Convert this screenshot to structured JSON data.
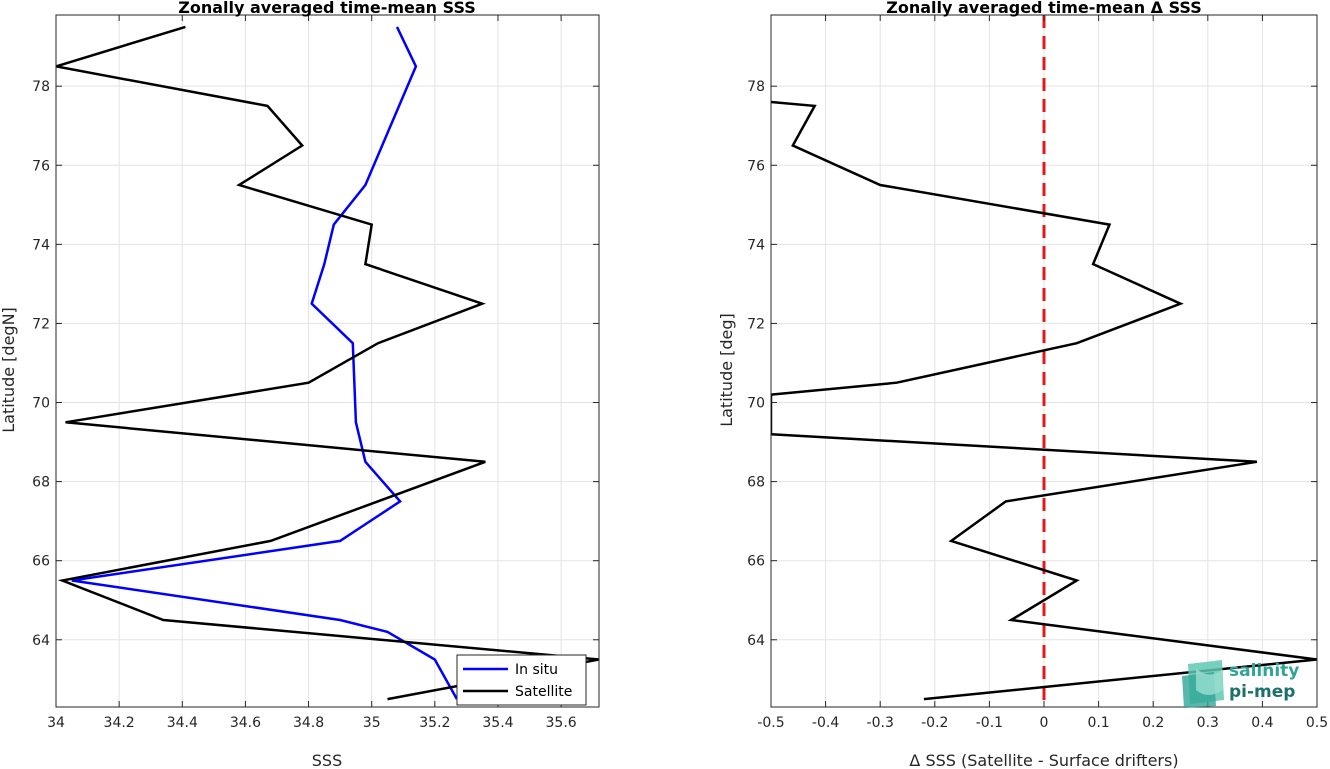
{
  "chart_data": [
    {
      "type": "line",
      "title": "Zonally averaged time-mean SSS",
      "xlabel": "SSS",
      "ylabel": "Latitude [degN]",
      "xlim": [
        34,
        35.72
      ],
      "ylim": [
        62.3,
        79.8
      ],
      "xticks": [
        34,
        34.2,
        34.4,
        34.6,
        34.8,
        35,
        35.2,
        35.4,
        35.6
      ],
      "xtick_labels": [
        "34",
        "34.2",
        "34.4",
        "34.6",
        "34.8",
        "35",
        "35.2",
        "35.4",
        "35.6"
      ],
      "yticks": [
        64,
        66,
        68,
        70,
        72,
        74,
        76,
        78
      ],
      "ytick_labels": [
        "64",
        "66",
        "68",
        "70",
        "72",
        "74",
        "76",
        "78"
      ],
      "grid": true,
      "legend_position": "bottom-right",
      "series": [
        {
          "name": "In situ",
          "color": "#0000ff",
          "x": [
            35.27,
            35.2,
            35.05,
            34.9,
            34.05,
            34.9,
            35.09,
            34.98,
            34.95,
            34.94,
            34.81,
            34.85,
            34.88,
            34.98,
            35.06,
            35.14,
            35.08
          ],
          "y": [
            62.5,
            63.5,
            64.2,
            64.5,
            65.5,
            66.5,
            67.5,
            68.5,
            69.5,
            71.5,
            72.5,
            73.5,
            74.5,
            75.5,
            77.0,
            78.5,
            79.5
          ]
        },
        {
          "name": "Satellite",
          "color": "#000000",
          "x": [
            35.05,
            35.72,
            35.72,
            34.34,
            34.02,
            34.68,
            35.36,
            34.03,
            34.8,
            35.02,
            35.35,
            34.98,
            35.0,
            34.58,
            34.78,
            34.67,
            34.0,
            34.41
          ],
          "y": [
            62.5,
            63.5,
            63.5,
            64.5,
            65.5,
            66.5,
            68.5,
            69.5,
            70.5,
            71.5,
            72.5,
            73.5,
            74.5,
            75.5,
            76.5,
            77.5,
            78.5,
            79.5
          ]
        }
      ]
    },
    {
      "type": "line",
      "title": "Zonally averaged time-mean Δ SSS",
      "xlabel": "Δ SSS (Satellite - Surface drifters)",
      "ylabel": "Latitude [deg]",
      "xlim": [
        -0.5,
        0.5
      ],
      "ylim": [
        62.3,
        79.8
      ],
      "xticks": [
        -0.5,
        -0.4,
        -0.3,
        -0.2,
        -0.1,
        0,
        0.1,
        0.2,
        0.3,
        0.4,
        0.5
      ],
      "xtick_labels": [
        "-0.5",
        "-0.4",
        "-0.3",
        "-0.2",
        "-0.1",
        "0",
        "0.1",
        "0.2",
        "0.3",
        "0.4",
        "0.5"
      ],
      "yticks": [
        64,
        66,
        68,
        70,
        72,
        74,
        76,
        78
      ],
      "ytick_labels": [
        "64",
        "66",
        "68",
        "70",
        "72",
        "74",
        "76",
        "78"
      ],
      "grid": true,
      "reference_line": {
        "x": 0,
        "color": "#e0191c",
        "style": "dashed"
      },
      "series": [
        {
          "color": "#000000",
          "x": [
            -0.22,
            0.5,
            0.5,
            -0.06,
            0.06,
            -0.17,
            -0.07,
            0.39,
            -0.5,
            -0.5,
            -0.27,
            0.06,
            0.25,
            0.09,
            0.12,
            -0.3,
            -0.46,
            -0.42,
            -0.5
          ],
          "y": [
            62.5,
            63.5,
            63.5,
            64.5,
            65.5,
            66.5,
            67.5,
            68.5,
            69.2,
            70.2,
            70.5,
            71.5,
            72.5,
            73.5,
            74.5,
            75.5,
            76.5,
            77.5,
            77.6
          ]
        }
      ]
    }
  ],
  "logo": {
    "line1": "salinity",
    "line2": "pi-mep"
  }
}
